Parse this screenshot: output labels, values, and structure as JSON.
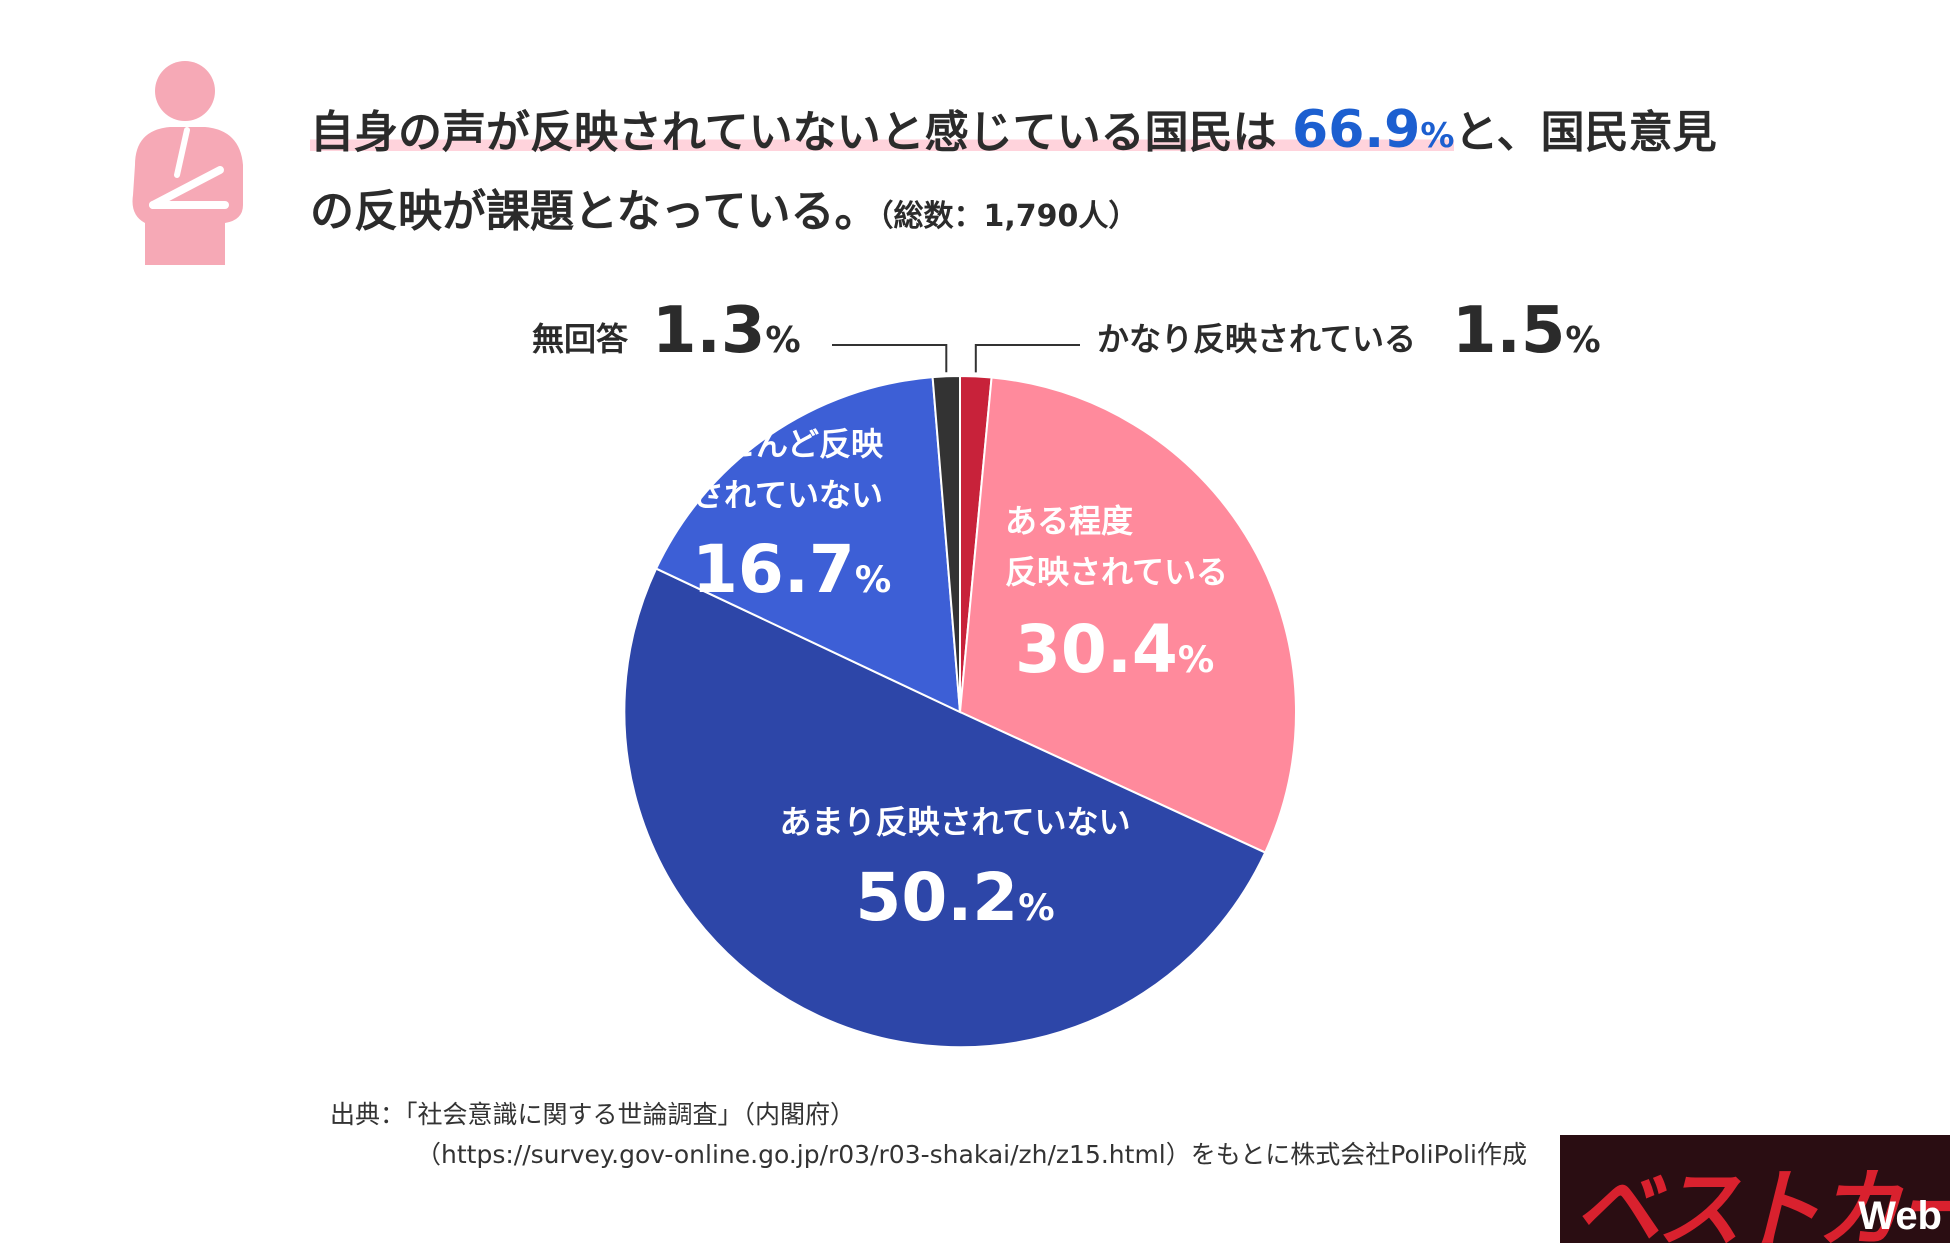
{
  "header": {
    "title_part1": "自身の声が反映されていないと感じている国民は",
    "highlight_value": "66.9",
    "highlight_unit": "%",
    "title_part2": "と、国民意見",
    "title_line2": "の反映が課題となっている。",
    "total_note": "（総数：1,790人）"
  },
  "chart_data": {
    "type": "pie",
    "start_angle_deg": 0,
    "direction": "clockwise",
    "slices": [
      {
        "label": "かなり反映されている",
        "value": 1.5,
        "display": "1.5",
        "color": "#c8223a"
      },
      {
        "label": "ある程度\n反映されている",
        "value": 30.4,
        "display": "30.4",
        "color": "#ff8a9c"
      },
      {
        "label": "あまり反映されていない",
        "value": 50.2,
        "display": "50.2",
        "color": "#2d46a8"
      },
      {
        "label": "ほとんど反映\nされていない",
        "value": 16.7,
        "display": "16.7",
        "color": "#3d5fd6"
      },
      {
        "label": "無回答",
        "value": 1.3,
        "display": "1.3",
        "color": "#333333"
      }
    ],
    "unit": "%"
  },
  "source": {
    "line1": "出典：「社会意識に関する世論調査」（内閣府）",
    "line2": "（https://survey.gov-online.go.jp/r03/r03-shakai/zh/z15.html）をもとに株式会社PoliPoli作成"
  },
  "logo": {
    "kana": "ベストカー",
    "web": "Web"
  },
  "colors": {
    "accent": "#1c5fd0",
    "underline": "#ffd3dc",
    "icon": "#f6a9b6"
  }
}
